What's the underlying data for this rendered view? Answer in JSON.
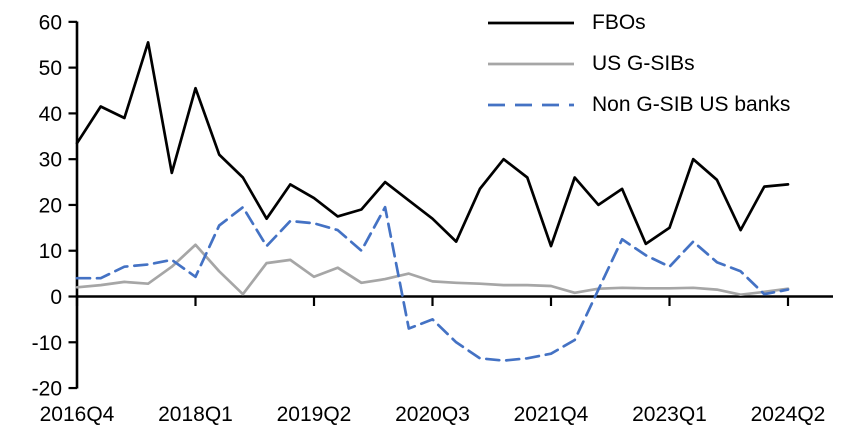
{
  "chart_data": {
    "type": "line",
    "title": "",
    "xlabel": "",
    "ylabel": "",
    "grid": false,
    "legend_position": "top-right",
    "axis_color": "#000000",
    "background_color": "#ffffff",
    "ylim": [
      -20,
      60
    ],
    "yticks": [
      "60",
      "50",
      "40",
      "30",
      "20",
      "10",
      "0",
      "-10",
      "-20"
    ],
    "x_categories": [
      "2016Q4",
      "2017Q1",
      "2017Q2",
      "2017Q3",
      "2017Q4",
      "2018Q1",
      "2018Q2",
      "2018Q3",
      "2018Q4",
      "2019Q1",
      "2019Q2",
      "2019Q3",
      "2019Q4",
      "2020Q1",
      "2020Q2",
      "2020Q3",
      "2020Q4",
      "2021Q1",
      "2021Q2",
      "2021Q3",
      "2021Q4",
      "2022Q1",
      "2022Q2",
      "2022Q3",
      "2022Q4",
      "2023Q1",
      "2023Q2",
      "2023Q3",
      "2023Q4",
      "2024Q1",
      "2024Q2"
    ],
    "x_tick_labels": [
      "2016Q4",
      "2018Q1",
      "2019Q2",
      "2020Q3",
      "2021Q4",
      "2023Q1",
      "2024Q2"
    ],
    "x_tick_indices": [
      0,
      5,
      10,
      15,
      20,
      25,
      30
    ],
    "series": [
      {
        "name": "FBOs",
        "color": "#000000",
        "dash": null,
        "values": [
          33.5,
          41.5,
          39,
          55.5,
          27,
          45.5,
          31,
          26,
          17,
          24.5,
          21.5,
          17.5,
          19,
          25,
          21,
          17,
          12,
          23.5,
          30,
          26,
          11,
          26,
          20,
          23.5,
          11.5,
          15,
          30,
          25.5,
          14.5,
          24,
          24.5
        ]
      },
      {
        "name": "US G-SIBs",
        "color": "#a6a6a6",
        "dash": null,
        "values": [
          2,
          2.5,
          3.2,
          2.8,
          6.5,
          11.3,
          5.5,
          0.5,
          7.3,
          8,
          4.3,
          6.3,
          3,
          3.8,
          5,
          3.3,
          3,
          2.8,
          2.5,
          2.5,
          2.3,
          0.8,
          1.7,
          1.9,
          1.8,
          1.8,
          1.9,
          1.5,
          0.4,
          1,
          1.7
        ]
      },
      {
        "name": "Non G-SIB US banks",
        "color": "#4472c4",
        "dash": [
          13,
          7
        ],
        "values": [
          4,
          4,
          6.5,
          7,
          8,
          4.3,
          15.5,
          19.5,
          11,
          16.5,
          16,
          14.5,
          10,
          19.5,
          -7,
          -5,
          -10,
          -13.5,
          -14,
          -13.5,
          -12.5,
          -9.5,
          1.5,
          12.5,
          9,
          6.5,
          12,
          7.5,
          5.5,
          0.5,
          1.5
        ]
      }
    ]
  }
}
